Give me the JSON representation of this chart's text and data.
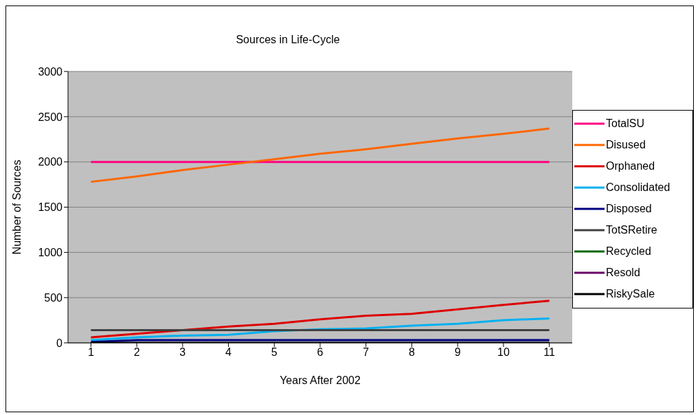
{
  "chart_data": {
    "type": "line",
    "title": "Sources in Life-Cycle",
    "xlabel": "Years  After  2002",
    "ylabel": "Number  of  Sources",
    "categories": [
      "1",
      "2",
      "3",
      "4",
      "5",
      "6",
      "7",
      "8",
      "9",
      "10",
      "11"
    ],
    "ylim": [
      0,
      3000
    ],
    "yticks": [
      0,
      500,
      1000,
      1500,
      2000,
      2500,
      3000
    ],
    "grid": "y",
    "legend": "right",
    "series": [
      {
        "name": "TotalSU",
        "color": "#ff0080",
        "values": [
          2000,
          2000,
          2000,
          2000,
          2000,
          2000,
          2000,
          2000,
          2000,
          2000,
          2000
        ]
      },
      {
        "name": "Disused",
        "color": "#ff6600",
        "values": [
          1780,
          1840,
          1910,
          1970,
          2030,
          2090,
          2140,
          2200,
          2260,
          2310,
          2370
        ]
      },
      {
        "name": "Orphaned",
        "color": "#dd0000",
        "values": [
          60,
          100,
          140,
          180,
          210,
          260,
          300,
          320,
          370,
          420,
          465
        ]
      },
      {
        "name": "Consolidated",
        "color": "#00b0f0",
        "values": [
          30,
          60,
          80,
          90,
          130,
          150,
          160,
          190,
          210,
          250,
          270
        ]
      },
      {
        "name": "Disposed",
        "color": "#000080",
        "values": [
          10,
          30,
          30,
          30,
          30,
          30,
          30,
          30,
          30,
          30,
          30
        ]
      },
      {
        "name": "TotSRetire",
        "color": "#404040",
        "values": [
          140,
          140,
          140,
          140,
          140,
          140,
          140,
          140,
          140,
          140,
          140
        ]
      },
      {
        "name": "Recycled",
        "color": "#006600",
        "values": [
          null,
          null,
          null,
          null,
          null,
          null,
          null,
          null,
          null,
          null,
          null
        ]
      },
      {
        "name": "Resold",
        "color": "#660066",
        "values": [
          null,
          null,
          null,
          null,
          null,
          null,
          null,
          null,
          null,
          null,
          null
        ]
      },
      {
        "name": "RiskySale",
        "color": "#000000",
        "values": [
          0,
          0,
          0,
          0,
          0,
          0,
          0,
          0,
          0,
          0,
          0
        ]
      }
    ]
  }
}
